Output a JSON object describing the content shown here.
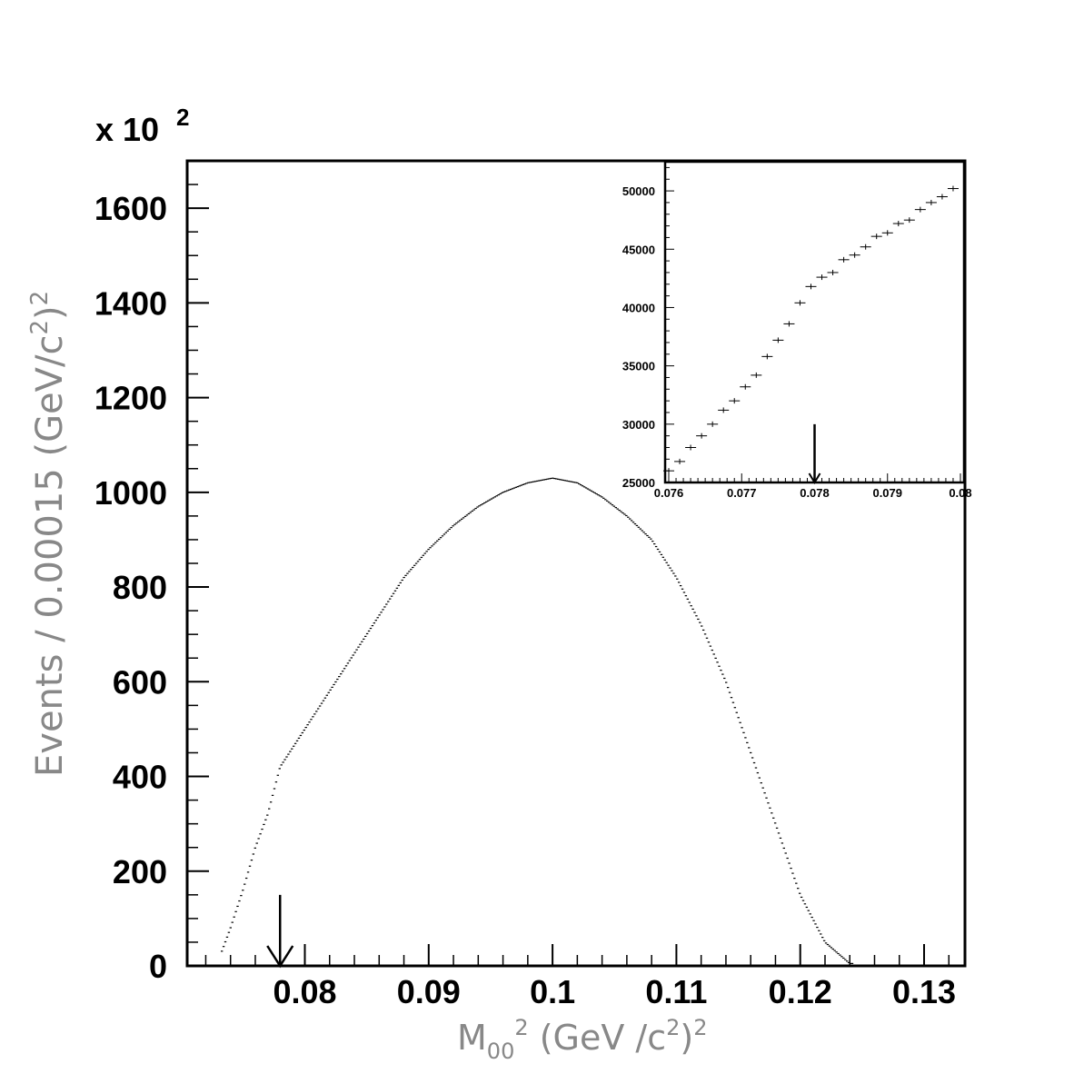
{
  "chart_data": [
    {
      "type": "scatter",
      "title": "",
      "ylabel": "Events / 0.00015 (GeV/c",
      "ylabel_sup": "2",
      "ylabel_tail": ")",
      "ylabel_sup2": "2",
      "xlabel_main": "M",
      "xlabel_sub": "00",
      "xlabel_sup": "2",
      "xlabel_paren": " (GeV /c",
      "xlabel_sup2": "2",
      "xlabel_close": ")",
      "xlabel_sup3": "2",
      "y_scale_label": "x 10",
      "y_scale_exp": "2",
      "xlim": [
        0.0705,
        0.1333
      ],
      "ylim": [
        0,
        1700
      ],
      "x_ticks": [
        0.08,
        0.09,
        0.1,
        0.11,
        0.12,
        0.13
      ],
      "x_tick_labels": [
        "0.08",
        "0.09",
        "0.1",
        "0.11",
        "0.12",
        "0.13"
      ],
      "y_ticks": [
        0,
        200,
        400,
        600,
        800,
        1000,
        1200,
        1400,
        1600
      ],
      "y_tick_labels": [
        "0",
        "200",
        "400",
        "600",
        "800",
        "1000",
        "1200",
        "1400",
        "1600"
      ],
      "arrow_x": 0.078,
      "arrow_y_top": 150,
      "curve_knots": [
        [
          0.073,
          10
        ],
        [
          0.074,
          80
        ],
        [
          0.075,
          160
        ],
        [
          0.076,
          250
        ],
        [
          0.077,
          320
        ],
        [
          0.078,
          420
        ],
        [
          0.08,
          500
        ],
        [
          0.082,
          580
        ],
        [
          0.084,
          660
        ],
        [
          0.086,
          740
        ],
        [
          0.088,
          820
        ],
        [
          0.09,
          880
        ],
        [
          0.092,
          930
        ],
        [
          0.094,
          970
        ],
        [
          0.096,
          1000
        ],
        [
          0.098,
          1020
        ],
        [
          0.1,
          1030
        ],
        [
          0.102,
          1020
        ],
        [
          0.104,
          990
        ],
        [
          0.106,
          950
        ],
        [
          0.108,
          900
        ],
        [
          0.11,
          820
        ],
        [
          0.112,
          720
        ],
        [
          0.114,
          600
        ],
        [
          0.116,
          450
        ],
        [
          0.118,
          300
        ],
        [
          0.12,
          150
        ],
        [
          0.122,
          50
        ],
        [
          0.124,
          5
        ]
      ],
      "curve_x_range": [
        0.0733,
        0.1242
      ],
      "curve_points": 360
    },
    {
      "type": "scatter",
      "title": "",
      "xlim": [
        0.07595,
        0.08005
      ],
      "ylim": [
        25000,
        52500
      ],
      "x_ticks": [
        0.076,
        0.077,
        0.078,
        0.079,
        0.08
      ],
      "x_tick_labels": [
        "0.076",
        "0.077",
        "0.078",
        "0.079",
        "0.08"
      ],
      "y_ticks": [
        25000,
        30000,
        35000,
        40000,
        45000,
        50000
      ],
      "y_tick_labels": [
        "25000",
        "30000",
        "35000",
        "40000",
        "45000",
        "50000"
      ],
      "arrow_x": 0.078,
      "arrow_y_top": 30000,
      "x": [
        0.076,
        0.07615,
        0.0763,
        0.07645,
        0.0766,
        0.07675,
        0.0769,
        0.07705,
        0.0772,
        0.07735,
        0.0775,
        0.07765,
        0.0778,
        0.07795,
        0.0781,
        0.07825,
        0.0784,
        0.07855,
        0.0787,
        0.07885,
        0.079,
        0.07915,
        0.0793,
        0.07945,
        0.0796,
        0.07975,
        0.0799
      ],
      "y": [
        26000,
        26800,
        28000,
        29000,
        30000,
        31200,
        32000,
        33200,
        34200,
        35800,
        37200,
        38600,
        40400,
        41800,
        42600,
        43000,
        44100,
        44500,
        45200,
        46100,
        46400,
        47200,
        47500,
        48400,
        49000,
        49500,
        50200
      ]
    }
  ]
}
